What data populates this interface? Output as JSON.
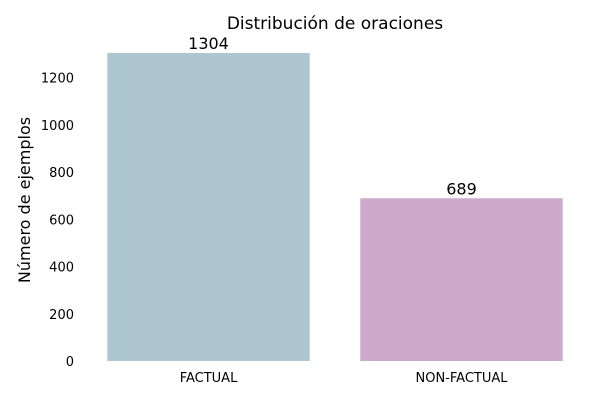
{
  "chart_data": {
    "type": "bar",
    "title": "Distribución de oraciones",
    "xlabel": "",
    "ylabel": "Número de ejemplos",
    "categories": [
      "FACTUAL",
      "NON-FACTUAL"
    ],
    "values": [
      1304,
      689
    ],
    "data_labels": [
      "1304",
      "689"
    ],
    "colors": [
      "#aec6cf",
      "#cda9cb"
    ],
    "ylim": [
      0,
      1304
    ],
    "yticks": [
      0,
      200,
      400,
      600,
      800,
      1000,
      1200
    ],
    "grid": false,
    "legend": "none"
  }
}
